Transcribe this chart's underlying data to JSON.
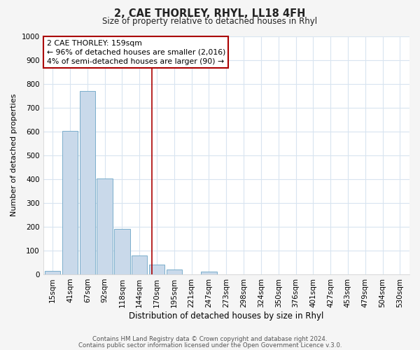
{
  "title": "2, CAE THORLEY, RHYL, LL18 4FH",
  "subtitle": "Size of property relative to detached houses in Rhyl",
  "xlabel": "Distribution of detached houses by size in Rhyl",
  "ylabel": "Number of detached properties",
  "bar_labels": [
    "15sqm",
    "41sqm",
    "67sqm",
    "92sqm",
    "118sqm",
    "144sqm",
    "170sqm",
    "195sqm",
    "221sqm",
    "247sqm",
    "273sqm",
    "298sqm",
    "324sqm",
    "350sqm",
    "376sqm",
    "401sqm",
    "427sqm",
    "453sqm",
    "479sqm",
    "504sqm",
    "530sqm"
  ],
  "bar_values": [
    15,
    601,
    769,
    403,
    190,
    80,
    42,
    20,
    0,
    13,
    0,
    0,
    0,
    0,
    0,
    0,
    0,
    0,
    0,
    0,
    0
  ],
  "bar_color": "#c9d9ea",
  "bar_edgecolor": "#7aaecb",
  "vline_x_index": 5.72,
  "vline_color": "#aa0000",
  "annotation_line1": "2 CAE THORLEY: 159sqm",
  "annotation_line2": "← 96% of detached houses are smaller (2,016)",
  "annotation_line3": "4% of semi-detached houses are larger (90) →",
  "annotation_box_edgecolor": "#aa0000",
  "ylim": [
    0,
    1000
  ],
  "yticks": [
    0,
    100,
    200,
    300,
    400,
    500,
    600,
    700,
    800,
    900,
    1000
  ],
  "footer1": "Contains HM Land Registry data © Crown copyright and database right 2024.",
  "footer2": "Contains public sector information licensed under the Open Government Licence v.3.0.",
  "plot_bg_color": "#ffffff",
  "fig_bg_color": "#f5f5f5",
  "grid_color": "#d8e4f0"
}
